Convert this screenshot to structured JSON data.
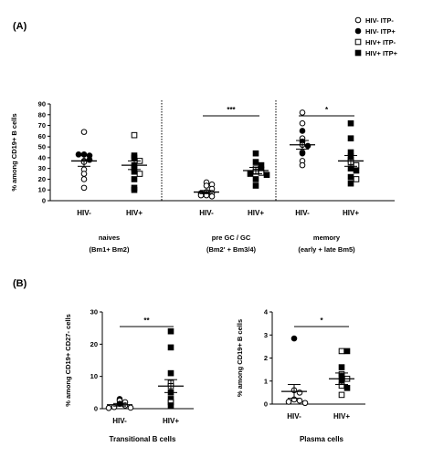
{
  "legend": [
    {
      "label": "HIV- ITP-",
      "marker": "open-circle"
    },
    {
      "label": "HIV- ITP+",
      "marker": "filled-circle"
    },
    {
      "label": "HIV+ ITP-",
      "marker": "open-square"
    },
    {
      "label": "HIV+ ITP+",
      "marker": "filled-square"
    }
  ],
  "panel_a": {
    "label": "(A)"
  },
  "panel_b": {
    "label": "(B)"
  },
  "chart_data": [
    {
      "id": "A",
      "type": "scatter",
      "ylabel": "% among CD19+ B cells",
      "ylim": [
        0,
        90
      ],
      "yticks": [
        0,
        10,
        20,
        30,
        40,
        50,
        60,
        70,
        80,
        90
      ],
      "groups": [
        {
          "name": "naives",
          "subtitle": "(Bm1+ Bm2)",
          "categories": [
            "HIV-",
            "HIV+"
          ],
          "significance": "",
          "series": [
            {
              "category": "HIV-",
              "mean": 37,
              "sem": 5,
              "points": [
                {
                  "v": 64,
                  "m": "oc"
                },
                {
                  "v": 43,
                  "m": "fc"
                },
                {
                  "v": 42,
                  "m": "fc"
                },
                {
                  "v": 43,
                  "m": "fc"
                },
                {
                  "v": 37,
                  "m": "oc"
                },
                {
                  "v": 36,
                  "m": "oc"
                },
                {
                  "v": 38,
                  "m": "fc"
                },
                {
                  "v": 29,
                  "m": "oc"
                },
                {
                  "v": 25,
                  "m": "oc"
                },
                {
                  "v": 20,
                  "m": "oc"
                },
                {
                  "v": 12,
                  "m": "oc"
                }
              ]
            },
            {
              "category": "HIV+",
              "mean": 33,
              "sem": 4,
              "points": [
                {
                  "v": 61,
                  "m": "os"
                },
                {
                  "v": 42,
                  "m": "fs"
                },
                {
                  "v": 40,
                  "m": "fs"
                },
                {
                  "v": 37,
                  "m": "os"
                },
                {
                  "v": 33,
                  "m": "fs"
                },
                {
                  "v": 30,
                  "m": "fs"
                },
                {
                  "v": 27,
                  "m": "fs"
                },
                {
                  "v": 25,
                  "m": "os"
                },
                {
                  "v": 20,
                  "m": "fs"
                },
                {
                  "v": 12,
                  "m": "fs"
                },
                {
                  "v": 10,
                  "m": "fs"
                }
              ]
            }
          ]
        },
        {
          "name": "pre GC / GC",
          "subtitle": "(Bm2' + Bm3/4)",
          "categories": [
            "HIV-",
            "HIV+"
          ],
          "significance": "***",
          "series": [
            {
              "category": "HIV-",
              "mean": 8,
              "sem": 1.5,
              "points": [
                {
                  "v": 17,
                  "m": "oc"
                },
                {
                  "v": 15,
                  "m": "oc"
                },
                {
                  "v": 14,
                  "m": "oc"
                },
                {
                  "v": 11,
                  "m": "oc"
                },
                {
                  "v": 8,
                  "m": "oc"
                },
                {
                  "v": 7,
                  "m": "oc"
                },
                {
                  "v": 5,
                  "m": "oc"
                },
                {
                  "v": 7,
                  "m": "fc"
                },
                {
                  "v": 4,
                  "m": "oc"
                },
                {
                  "v": 5,
                  "m": "oc"
                }
              ]
            },
            {
              "category": "HIV+",
              "mean": 28,
              "sem": 3,
              "points": [
                {
                  "v": 44,
                  "m": "fs"
                },
                {
                  "v": 36,
                  "m": "fs"
                },
                {
                  "v": 33,
                  "m": "fs"
                },
                {
                  "v": 30,
                  "m": "os"
                },
                {
                  "v": 29,
                  "m": "fs"
                },
                {
                  "v": 27,
                  "m": "os"
                },
                {
                  "v": 26,
                  "m": "os"
                },
                {
                  "v": 25,
                  "m": "fs"
                },
                {
                  "v": 20,
                  "m": "fs"
                },
                {
                  "v": 14,
                  "m": "fs"
                },
                {
                  "v": 24,
                  "m": "fs"
                }
              ]
            }
          ]
        },
        {
          "name": "memory",
          "subtitle": "(early + late Bm5)",
          "categories": [
            "HIV-",
            "HIV+"
          ],
          "significance": "*",
          "series": [
            {
              "category": "HIV-",
              "mean": 52,
              "sem": 4,
              "points": [
                {
                  "v": 82,
                  "m": "oc"
                },
                {
                  "v": 72,
                  "m": "oc"
                },
                {
                  "v": 65,
                  "m": "fc"
                },
                {
                  "v": 58,
                  "m": "oc"
                },
                {
                  "v": 55,
                  "m": "fc"
                },
                {
                  "v": 52,
                  "m": "oc"
                },
                {
                  "v": 51,
                  "m": "fc"
                },
                {
                  "v": 45,
                  "m": "oc"
                },
                {
                  "v": 44,
                  "m": "fc"
                },
                {
                  "v": 37,
                  "m": "oc"
                },
                {
                  "v": 33,
                  "m": "oc"
                }
              ]
            },
            {
              "category": "HIV+",
              "mean": 37,
              "sem": 5,
              "points": [
                {
                  "v": 72,
                  "m": "fs"
                },
                {
                  "v": 58,
                  "m": "fs"
                },
                {
                  "v": 45,
                  "m": "fs"
                },
                {
                  "v": 41,
                  "m": "fs"
                },
                {
                  "v": 38,
                  "m": "fs"
                },
                {
                  "v": 36,
                  "m": "os"
                },
                {
                  "v": 33,
                  "m": "os"
                },
                {
                  "v": 30,
                  "m": "fs"
                },
                {
                  "v": 28,
                  "m": "fs"
                },
                {
                  "v": 22,
                  "m": "fs"
                },
                {
                  "v": 20,
                  "m": "os"
                },
                {
                  "v": 16,
                  "m": "fs"
                }
              ]
            }
          ]
        }
      ]
    },
    {
      "id": "B1",
      "type": "scatter",
      "title": "Transitional B cells",
      "ylabel": "% among CD19+ CD27- cells",
      "ylim": [
        0,
        30
      ],
      "yticks": [
        0,
        10,
        20,
        30
      ],
      "categories": [
        "HIV-",
        "HIV+"
      ],
      "significance": "**",
      "series": [
        {
          "category": "HIV-",
          "mean": 1.2,
          "sem": 0.4,
          "points": [
            {
              "v": 3,
              "m": "fc"
            },
            {
              "v": 2.5,
              "m": "oc"
            },
            {
              "v": 2,
              "m": "oc"
            },
            {
              "v": 1.5,
              "m": "fc"
            },
            {
              "v": 1,
              "m": "oc"
            },
            {
              "v": 0.5,
              "m": "oc"
            },
            {
              "v": 0.3,
              "m": "oc"
            },
            {
              "v": 0.2,
              "m": "oc"
            }
          ]
        },
        {
          "category": "HIV+",
          "mean": 7,
          "sem": 2,
          "points": [
            {
              "v": 24,
              "m": "fs"
            },
            {
              "v": 19,
              "m": "fs"
            },
            {
              "v": 11,
              "m": "fs"
            },
            {
              "v": 8,
              "m": "os"
            },
            {
              "v": 7,
              "m": "os"
            },
            {
              "v": 5,
              "m": "fs"
            },
            {
              "v": 3,
              "m": "fs"
            },
            {
              "v": 2,
              "m": "os"
            },
            {
              "v": 1,
              "m": "fs"
            }
          ]
        }
      ]
    },
    {
      "id": "B2",
      "type": "scatter",
      "title": "Plasma cells",
      "ylabel": "% among CD19+ B cells",
      "ylim": [
        0,
        4
      ],
      "yticks": [
        0,
        1,
        2,
        3,
        4
      ],
      "categories": [
        "HIV-",
        "HIV+"
      ],
      "significance": "*",
      "series": [
        {
          "category": "HIV-",
          "mean": 0.55,
          "sem": 0.3,
          "points": [
            {
              "v": 2.85,
              "m": "fc"
            },
            {
              "v": 0.6,
              "m": "oc"
            },
            {
              "v": 0.5,
              "m": "oc"
            },
            {
              "v": 0.2,
              "m": "oc"
            },
            {
              "v": 0.15,
              "m": "oc"
            },
            {
              "v": 0.1,
              "m": "oc"
            },
            {
              "v": 0.05,
              "m": "oc"
            }
          ]
        },
        {
          "category": "HIV+",
          "mean": 1.1,
          "sem": 0.25,
          "points": [
            {
              "v": 2.3,
              "m": "os"
            },
            {
              "v": 2.3,
              "m": "fs"
            },
            {
              "v": 1.6,
              "m": "fs"
            },
            {
              "v": 1.3,
              "m": "os"
            },
            {
              "v": 1.2,
              "m": "fs"
            },
            {
              "v": 1.1,
              "m": "os"
            },
            {
              "v": 1.0,
              "m": "fs"
            },
            {
              "v": 0.8,
              "m": "os"
            },
            {
              "v": 0.7,
              "m": "fs"
            },
            {
              "v": 0.4,
              "m": "os"
            }
          ]
        }
      ]
    }
  ]
}
